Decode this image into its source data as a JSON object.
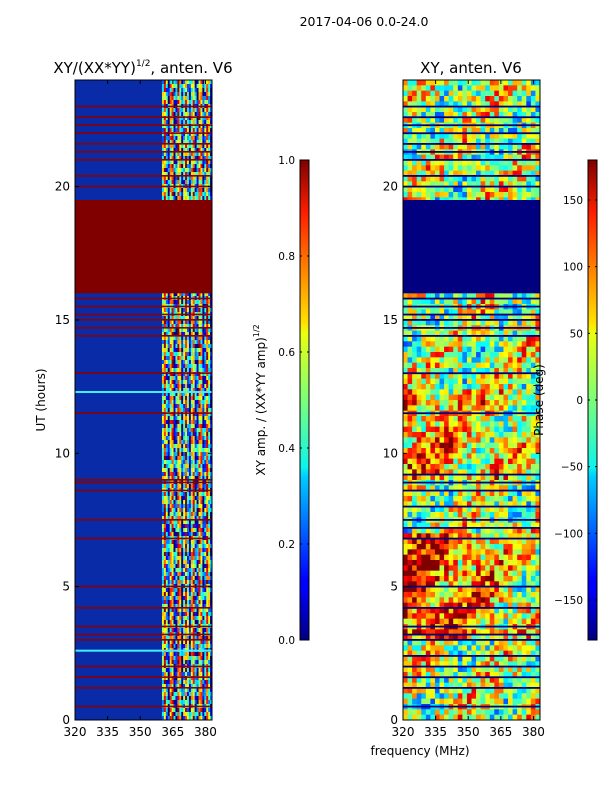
{
  "suptitle": "2017-04-06 0.0-24.0",
  "shared_xlabel": "frequency (MHz)",
  "chart_data": [
    {
      "type": "heatmap",
      "title": "XY/(XX*YY)",
      "title_superscript": "1/2",
      "title_suffix": ", anten. V6",
      "ylabel": "UT (hours)",
      "xlim": [
        320,
        383
      ],
      "ylim": [
        0,
        24
      ],
      "xticks": [
        "320",
        "335",
        "350",
        "365",
        "380"
      ],
      "xtick_values": [
        320,
        335,
        350,
        365,
        380
      ],
      "yticks": [
        "0",
        "5",
        "10",
        "15",
        "20"
      ],
      "ytick_values": [
        0,
        5,
        10,
        15,
        20
      ],
      "colorbar": {
        "label": "XY amp. / (XX*YY amp)",
        "label_superscript": "1/2",
        "min": 0.0,
        "max": 1.0,
        "ticks": [
          "0.0",
          "0.2",
          "0.4",
          "0.6",
          "0.8",
          "1.0"
        ],
        "tick_values": [
          0.0,
          0.2,
          0.4,
          0.6,
          0.8,
          1.0
        ]
      },
      "saturated_band_hours": [
        16.0,
        19.5
      ],
      "active_band_mhz": [
        360,
        383
      ],
      "background_value": 0.15,
      "flagged_hours": [
        0.5,
        1.2,
        1.6,
        2.0,
        3.0,
        3.2,
        3.5,
        4.2,
        5.0,
        6.8,
        7.5,
        8.6,
        8.9,
        9.0,
        11.5,
        13.0,
        14.4,
        14.7,
        15.0,
        15.2,
        15.5,
        15.8,
        20.0,
        20.4,
        21.0,
        21.3,
        21.6,
        22.0,
        22.3,
        22.6,
        23.0
      ]
    },
    {
      "type": "heatmap",
      "title": "XY, anten. V6",
      "xlim": [
        320,
        383
      ],
      "ylim": [
        0,
        24
      ],
      "xticks": [
        "320",
        "335",
        "350",
        "365",
        "380"
      ],
      "xtick_values": [
        320,
        335,
        350,
        365,
        380
      ],
      "yticks": [
        "0",
        "5",
        "10",
        "15",
        "20"
      ],
      "ytick_values": [
        0,
        5,
        10,
        15,
        20
      ],
      "colorbar": {
        "label": "Phase (deg)",
        "min": -180,
        "max": 180,
        "ticks": [
          "−150",
          "−100",
          "−50",
          "0",
          "50",
          "100",
          "150"
        ],
        "tick_values": [
          -150,
          -100,
          -50,
          0,
          50,
          100,
          150
        ]
      },
      "uniform_band_hours": [
        16.0,
        19.5
      ],
      "uniform_band_value": -180,
      "flagged_hours": [
        0.5,
        1.2,
        1.6,
        2.0,
        2.4,
        3.0,
        3.2,
        3.5,
        4.2,
        5.0,
        6.8,
        7.2,
        7.5,
        8.0,
        8.6,
        8.9,
        9.2,
        11.5,
        13.0,
        14.4,
        14.7,
        15.0,
        15.2,
        15.5,
        15.8,
        20.0,
        20.4,
        21.0,
        21.3,
        21.6,
        22.0,
        22.3,
        22.6,
        23.0
      ]
    }
  ]
}
